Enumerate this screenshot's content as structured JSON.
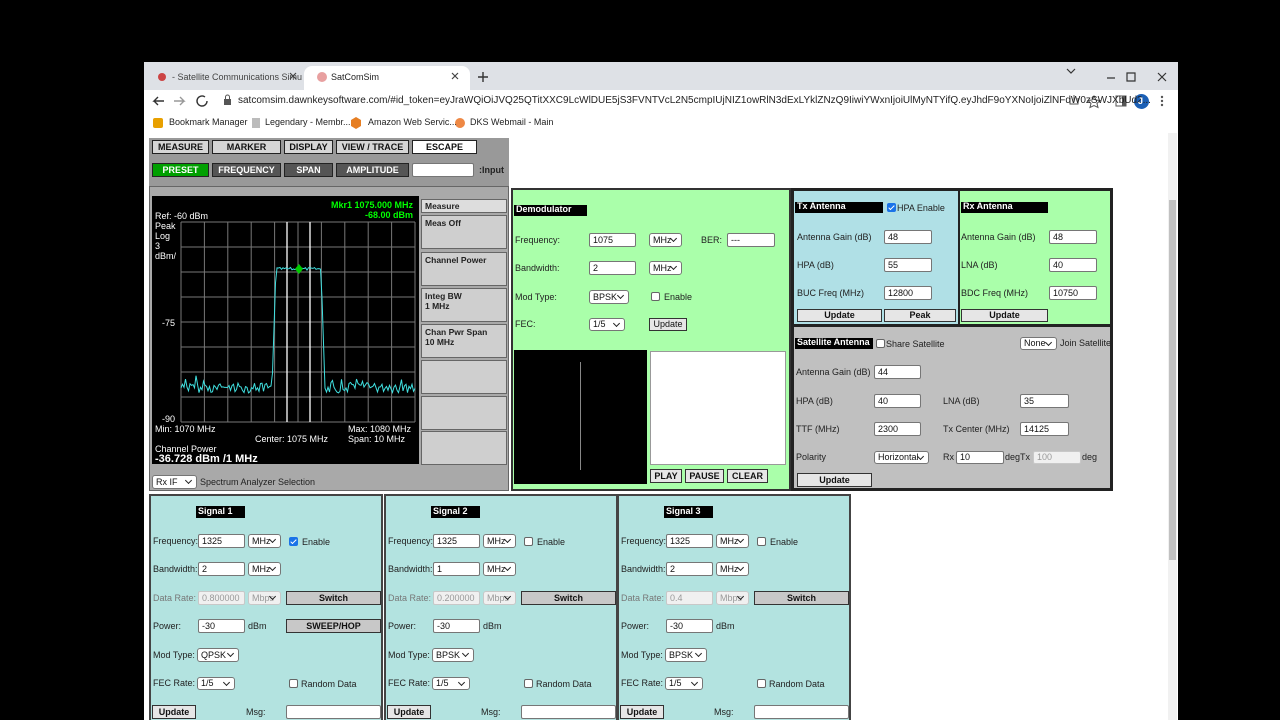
{
  "browser": {
    "tabs": [
      "- Satellite Communications Simu",
      "SatComSim"
    ],
    "url": "satcomsim.dawnkeysoftware.com/#id_token=eyJraWQiOiJVQ25QTitXXC9LcWlDUE5jS3FVNTVcL2N5cmpIUjNIZ1owRlN3dExLYklZNzQ9IiwiYWxnIjoiUlMyNTYifQ.eyJhdF9oYXNoIjoiZlNFdW0zSWJXbUd2...",
    "bookmarks": [
      "Bookmark Manager",
      "Legendary - Membr...",
      "Amazon Web Servic...",
      "DKS Webmail - Main"
    ],
    "profile": "J"
  },
  "analyzer": {
    "menu": [
      "MEASURE",
      "MARKER",
      "DISPLAY",
      "VIEW / TRACE",
      "ESCAPE"
    ],
    "submenu": [
      "PRESET",
      "FREQUENCY",
      "SPAN",
      "AMPLITUDE"
    ],
    "input_label": ":Input",
    "marker": "Mkr1 1075.000 MHz",
    "marker_level": "-68.00 dBm",
    "ref": "Ref: -60 dBm",
    "scale": [
      "Peak",
      "Log",
      "3",
      "dBm/"
    ],
    "level_labels": [
      -75,
      -90
    ],
    "min": "Min: 1070 MHz",
    "center": "Center: 1075 MHz",
    "max": "Max: 1080 MHz",
    "span": "Span: 10 MHz",
    "channel_power_label": "Channel Power",
    "channel_power": "-36.728 dBm /1 MHz",
    "softkey_header": "Measure",
    "softkeys": [
      [
        "Meas Off"
      ],
      [
        "Channel Power"
      ],
      [
        "Integ BW",
        "1 MHz"
      ],
      [
        "Chan Pwr Span",
        "10 MHz"
      ]
    ],
    "source": "Rx IF",
    "source_label": "Spectrum Analyzer Selection"
  },
  "demodulator": {
    "title": "Demodulator",
    "labels": {
      "frequency": "Frequency:",
      "bandwidth": "Bandwidth:",
      "mod_type": "Mod Type:",
      "fec": "FEC:",
      "ber": "BER:",
      "enable": "Enable"
    },
    "frequency": 1075,
    "unit": "MHz",
    "bandwidth": 2,
    "ber": "---",
    "mod_type": "BPSK",
    "enabled": false,
    "fec": "1/5",
    "update": "Update",
    "controls": [
      "PLAY",
      "PAUSE",
      "CLEAR"
    ]
  },
  "tx_antenna": {
    "title": "Tx Antenna",
    "hpa_enable_label": "HPA Enable",
    "hpa_enabled": true,
    "fields": [
      {
        "label": "Antenna Gain (dB)",
        "value": 48
      },
      {
        "label": "HPA (dB)",
        "value": 55
      },
      {
        "label": "BUC Freq (MHz)",
        "value": 12800
      }
    ],
    "buttons": [
      "Update",
      "Peak"
    ]
  },
  "rx_antenna": {
    "title": "Rx Antenna",
    "fields": [
      {
        "label": "Antenna Gain (dB)",
        "value": 48
      },
      {
        "label": "LNA (dB)",
        "value": 40
      },
      {
        "label": "BDC Freq (MHz)",
        "value": 10750
      }
    ],
    "button": "Update"
  },
  "satellite_antenna": {
    "title": "Satellite Antenna",
    "share_label": "Share Satellite",
    "shared": false,
    "satellite": "None",
    "join_label": "Join Satellite",
    "antenna_gain_label": "Antenna Gain (dB)",
    "antenna_gain": 44,
    "hpa_label": "HPA (dB)",
    "hpa": 40,
    "lna_label": "LNA (dB)",
    "lna": 35,
    "ttf_label": "TTF (MHz)",
    "ttf": 2300,
    "tx_center_label": "Tx Center (MHz)",
    "tx_center": 14125,
    "polarity_label": "Polarity",
    "polarity": "Horizontal",
    "rx_label": "Rx",
    "rx": 10,
    "deg": "deg",
    "tx_label": "Tx",
    "tx": 100,
    "update": "Update"
  },
  "signal_labels": {
    "frequency": "Frequency:",
    "bandwidth": "Bandwidth:",
    "data_rate": "Data Rate:",
    "power": "Power:",
    "mod_type": "Mod Type:",
    "fec_rate": "FEC Rate:",
    "enable": "Enable",
    "random_data": "Random Data",
    "msg": "Msg:",
    "switch": "Switch",
    "update": "Update",
    "mhz": "MHz",
    "mbps": "Mbps",
    "dbm": "dBm"
  },
  "signals": [
    {
      "title": "Signal 1",
      "frequency": 1325,
      "enabled": true,
      "bandwidth": 2,
      "data_rate": "0.800000",
      "power": -30,
      "mod_type": "QPSK",
      "fec_rate": "1/5",
      "random_data": false,
      "sweep_hop": "SWEEP/HOP"
    },
    {
      "title": "Signal 2",
      "frequency": 1325,
      "enabled": false,
      "bandwidth": 1,
      "data_rate": "0.200000",
      "power": -30,
      "mod_type": "BPSK",
      "fec_rate": "1/5",
      "random_data": false
    },
    {
      "title": "Signal 3",
      "frequency": 1325,
      "enabled": false,
      "bandwidth": 2,
      "data_rate": 0.4,
      "power": -30,
      "mod_type": "BPSK",
      "fec_rate": "1/5",
      "random_data": false
    }
  ]
}
